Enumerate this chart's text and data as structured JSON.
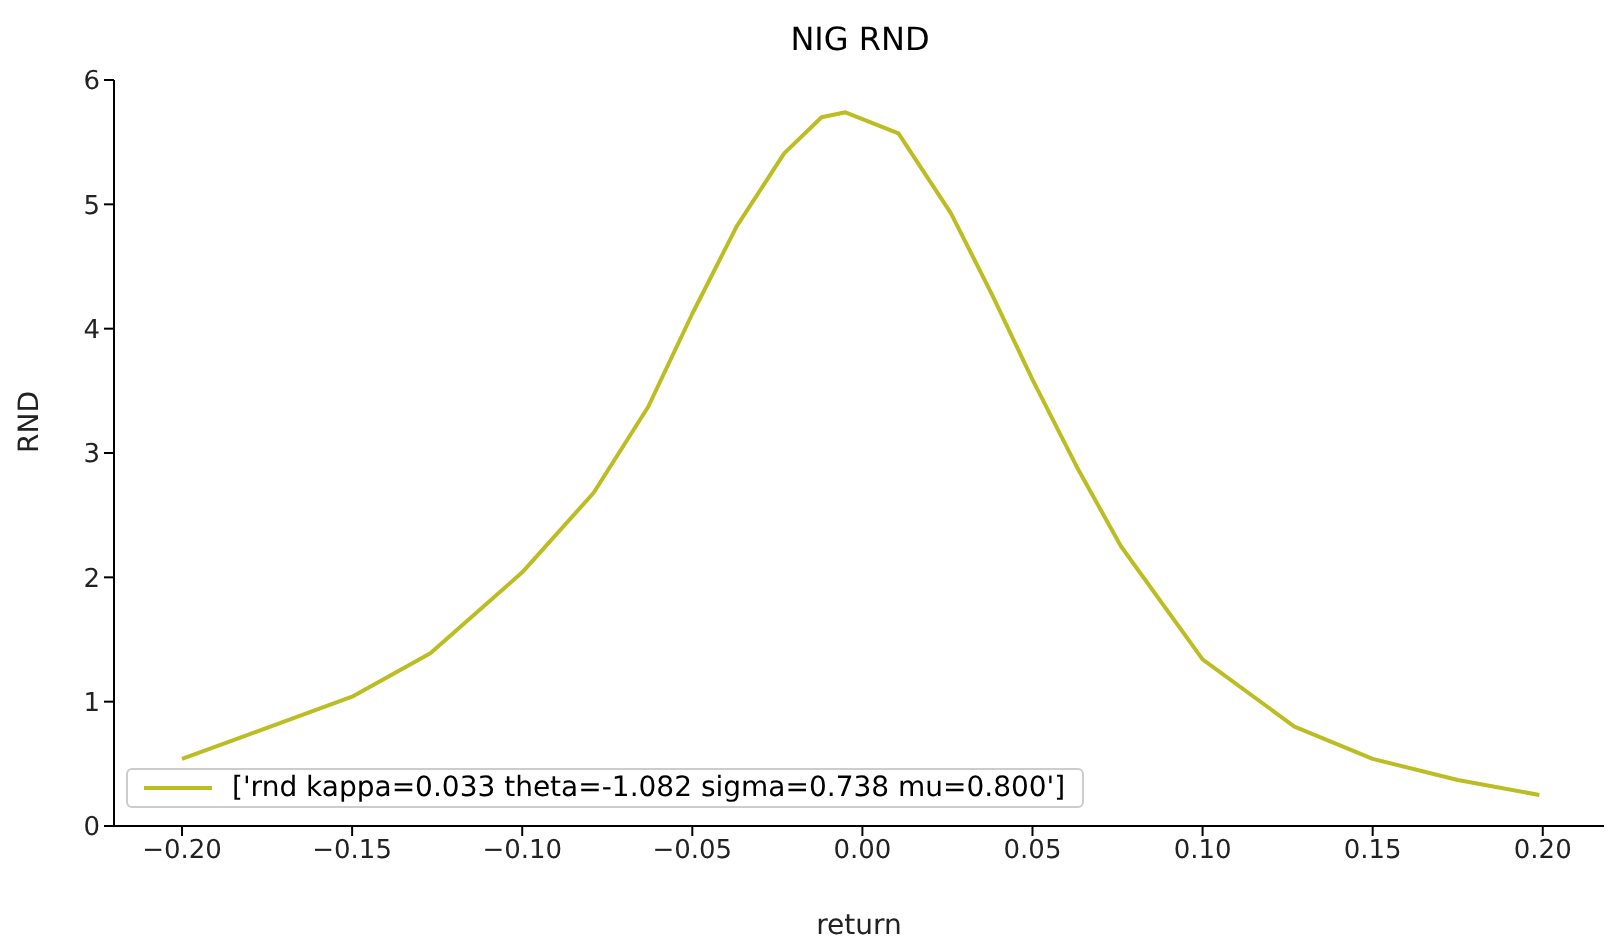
{
  "chart_data": {
    "type": "line",
    "title": "NIG RND",
    "xlabel": "return",
    "ylabel": "RND",
    "series": [
      {
        "name": "['rnd kappa=0.033 theta=-1.082 sigma=0.738 mu=0.800']",
        "color": "#bcbd22",
        "x": [
          -0.2,
          -0.15,
          -0.127,
          -0.1,
          -0.079,
          -0.063,
          -0.05,
          -0.037,
          -0.023,
          -0.012,
          -0.005,
          0.0106,
          0.026,
          0.038,
          0.05,
          0.063,
          0.076,
          0.1,
          0.127,
          0.15,
          0.175,
          0.199
        ],
        "values": [
          0.54,
          1.04,
          1.39,
          2.04,
          2.68,
          3.37,
          4.12,
          4.82,
          5.41,
          5.7,
          5.74,
          5.57,
          4.93,
          4.28,
          3.59,
          2.89,
          2.25,
          1.34,
          0.8,
          0.54,
          0.37,
          0.25
        ]
      }
    ],
    "xlim": [
      -0.22,
      0.218
    ],
    "xticks": [
      {
        "value": -0.2,
        "label": "−0.20"
      },
      {
        "value": -0.15,
        "label": "−0.15"
      },
      {
        "value": -0.1,
        "label": "−0.10"
      },
      {
        "value": -0.05,
        "label": "−0.05"
      },
      {
        "value": 0,
        "label": "0.00"
      },
      {
        "value": 0.05,
        "label": "0.05"
      },
      {
        "value": 0.1,
        "label": "0.10"
      },
      {
        "value": 0.15,
        "label": "0.15"
      },
      {
        "value": 0.2,
        "label": "0.20"
      }
    ],
    "ylim": [
      0,
      6
    ],
    "yticks": [
      0,
      1,
      2,
      3,
      4,
      5,
      6
    ],
    "legend": "bottom left",
    "marker": "none",
    "line_style": "solid"
  }
}
